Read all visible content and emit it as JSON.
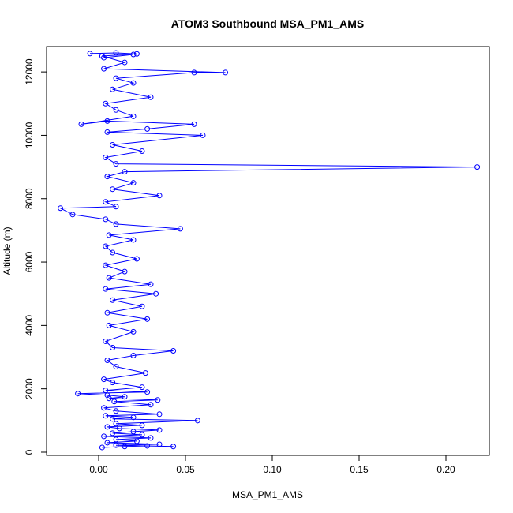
{
  "chart_data": {
    "type": "line",
    "title": "ATOM3 Southbound MSA_PM1_AMS",
    "xlabel": "MSA_PM1_AMS",
    "ylabel": "Altitude (m)",
    "xlim": [
      -0.03,
      0.225
    ],
    "ylim": [
      -100,
      12800
    ],
    "x_ticks": [
      0.0,
      0.05,
      0.1,
      0.15,
      0.2
    ],
    "x_tick_labels": [
      "0.00",
      "0.05",
      "0.10",
      "0.15",
      "0.20"
    ],
    "y_ticks": [
      0,
      2000,
      4000,
      6000,
      8000,
      10000,
      12000
    ],
    "y_tick_labels": [
      "0",
      "2000",
      "4000",
      "6000",
      "8000",
      "10000",
      "12000"
    ],
    "grid": false,
    "legend": "none",
    "color": "#0000ff",
    "series": [
      {
        "marker": "open-circle",
        "points": [
          [
            0.002,
            150
          ],
          [
            0.015,
            180
          ],
          [
            0.028,
            200
          ],
          [
            0.043,
            180
          ],
          [
            0.01,
            220
          ],
          [
            0.035,
            250
          ],
          [
            0.005,
            300
          ],
          [
            0.022,
            350
          ],
          [
            0.01,
            400
          ],
          [
            0.03,
            450
          ],
          [
            0.003,
            500
          ],
          [
            0.025,
            550
          ],
          [
            0.008,
            600
          ],
          [
            0.02,
            650
          ],
          [
            0.035,
            700
          ],
          [
            0.012,
            750
          ],
          [
            0.005,
            800
          ],
          [
            0.025,
            850
          ],
          [
            0.01,
            900
          ],
          [
            0.057,
            1000
          ],
          [
            0.008,
            1050
          ],
          [
            0.02,
            1100
          ],
          [
            0.004,
            1150
          ],
          [
            0.035,
            1200
          ],
          [
            0.01,
            1300
          ],
          [
            0.003,
            1400
          ],
          [
            0.03,
            1500
          ],
          [
            0.009,
            1600
          ],
          [
            0.034,
            1650
          ],
          [
            0.006,
            1700
          ],
          [
            0.015,
            1750
          ],
          [
            0.005,
            1800
          ],
          [
            -0.012,
            1850
          ],
          [
            0.028,
            1900
          ],
          [
            0.004,
            1950
          ],
          [
            0.025,
            2050
          ],
          [
            0.008,
            2200
          ],
          [
            0.003,
            2300
          ],
          [
            0.027,
            2500
          ],
          [
            0.01,
            2700
          ],
          [
            0.005,
            2900
          ],
          [
            0.02,
            3050
          ],
          [
            0.043,
            3200
          ],
          [
            0.008,
            3300
          ],
          [
            0.004,
            3500
          ],
          [
            0.02,
            3800
          ],
          [
            0.006,
            4000
          ],
          [
            0.028,
            4200
          ],
          [
            0.005,
            4400
          ],
          [
            0.025,
            4600
          ],
          [
            0.008,
            4800
          ],
          [
            0.033,
            5000
          ],
          [
            0.004,
            5150
          ],
          [
            0.03,
            5300
          ],
          [
            0.006,
            5500
          ],
          [
            0.015,
            5700
          ],
          [
            0.004,
            5900
          ],
          [
            0.022,
            6100
          ],
          [
            0.008,
            6300
          ],
          [
            0.004,
            6500
          ],
          [
            0.02,
            6700
          ],
          [
            0.006,
            6850
          ],
          [
            0.047,
            7050
          ],
          [
            0.01,
            7200
          ],
          [
            0.004,
            7350
          ],
          [
            -0.015,
            7500
          ],
          [
            -0.022,
            7700
          ],
          [
            0.01,
            7750
          ],
          [
            0.004,
            7900
          ],
          [
            0.035,
            8100
          ],
          [
            0.008,
            8300
          ],
          [
            0.02,
            8500
          ],
          [
            0.005,
            8700
          ],
          [
            0.015,
            8850
          ],
          [
            0.218,
            9000
          ],
          [
            0.01,
            9100
          ],
          [
            0.004,
            9300
          ],
          [
            0.025,
            9500
          ],
          [
            0.008,
            9700
          ],
          [
            0.06,
            10000
          ],
          [
            0.005,
            10100
          ],
          [
            0.028,
            10200
          ],
          [
            0.055,
            10350
          ],
          [
            0.005,
            10450
          ],
          [
            -0.01,
            10350
          ],
          [
            0.02,
            10600
          ],
          [
            0.01,
            10800
          ],
          [
            0.004,
            11000
          ],
          [
            0.03,
            11200
          ],
          [
            0.008,
            11450
          ],
          [
            0.02,
            11650
          ],
          [
            0.01,
            11800
          ],
          [
            0.055,
            11980
          ],
          [
            0.073,
            11980
          ],
          [
            0.003,
            12100
          ],
          [
            0.015,
            12300
          ],
          [
            0.002,
            12500
          ],
          [
            0.022,
            12570
          ],
          [
            0.01,
            12600
          ],
          [
            -0.005,
            12580
          ],
          [
            0.02,
            12550
          ],
          [
            0.003,
            12450
          ]
        ]
      }
    ]
  }
}
